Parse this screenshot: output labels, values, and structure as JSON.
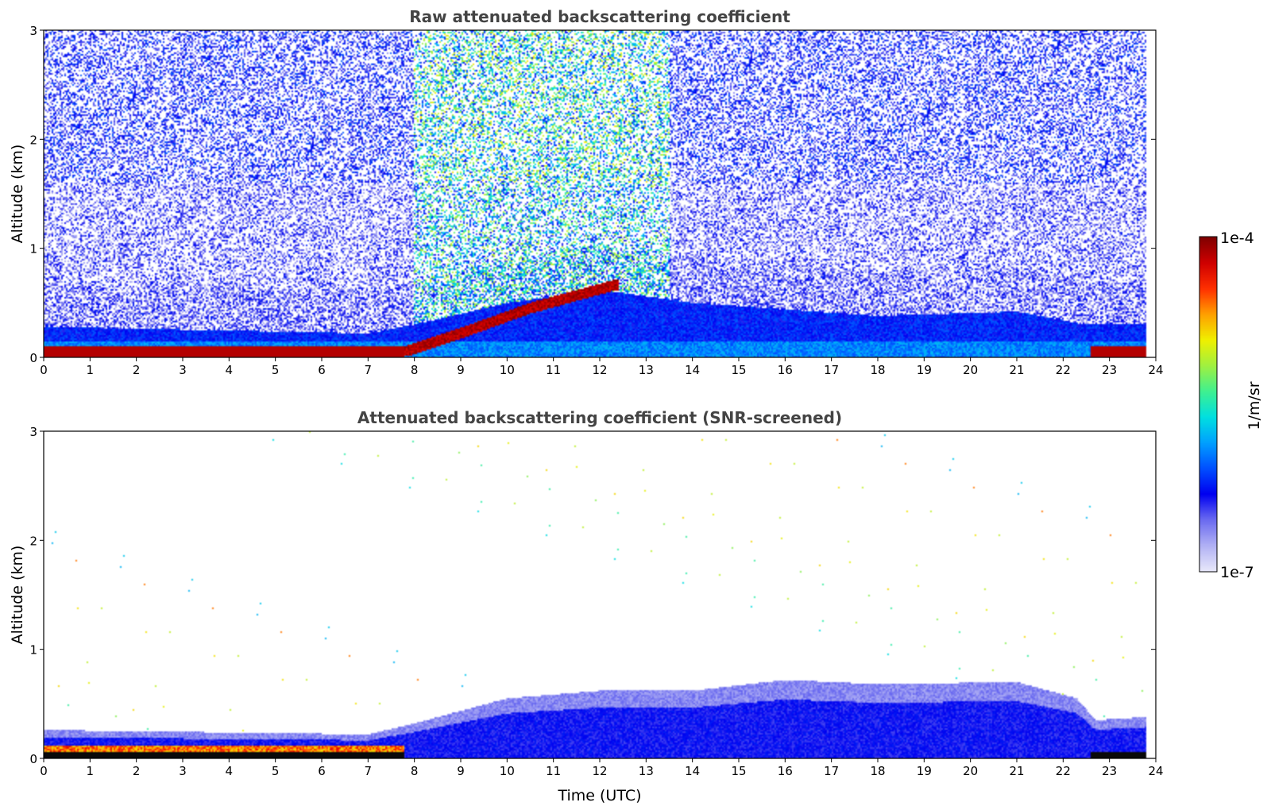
{
  "chart_data": [
    {
      "type": "heatmap",
      "title": "Raw attenuated backscattering coefficient",
      "xlabel": "",
      "ylabel": "Altitude (km)",
      "xlim": [
        0,
        24
      ],
      "ylim": [
        0,
        3
      ],
      "xticks": [
        0,
        1,
        2,
        3,
        4,
        5,
        6,
        7,
        8,
        9,
        10,
        11,
        12,
        13,
        14,
        15,
        16,
        17,
        18,
        19,
        20,
        21,
        22,
        23,
        24
      ],
      "yticks": [
        0,
        1,
        2,
        3
      ],
      "features": {
        "data_end_hour": 23.8,
        "surface_layer_top_km": 0.1,
        "aerosol_layer": [
          [
            0,
            0.28
          ],
          [
            7,
            0.22
          ],
          [
            8,
            0.3
          ],
          [
            10,
            0.5
          ],
          [
            12,
            0.62
          ],
          [
            14,
            0.5
          ],
          [
            18,
            0.38
          ],
          [
            21,
            0.42
          ],
          [
            22.5,
            0.3
          ],
          [
            23.8,
            0.3
          ]
        ],
        "rising_strong_layer": [
          [
            7.8,
            0.05
          ],
          [
            9,
            0.22
          ],
          [
            10.5,
            0.45
          ],
          [
            12.3,
            0.66
          ]
        ],
        "late_surface_layer_start_hour": 22.6
      }
    },
    {
      "type": "heatmap",
      "title": "Attenuated backscattering coefficient (SNR-screened)",
      "xlabel": "Time (UTC)",
      "ylabel": "Altitude (km)",
      "xlim": [
        0,
        24
      ],
      "ylim": [
        0,
        3
      ],
      "xticks": [
        0,
        1,
        2,
        3,
        4,
        5,
        6,
        7,
        8,
        9,
        10,
        11,
        12,
        13,
        14,
        15,
        16,
        17,
        18,
        19,
        20,
        21,
        22,
        23,
        24
      ],
      "yticks": [
        0,
        1,
        2,
        3
      ],
      "features": {
        "data_end_hour": 23.8,
        "screened_layer_top": [
          [
            0,
            0.26
          ],
          [
            7,
            0.22
          ],
          [
            8,
            0.32
          ],
          [
            10,
            0.55
          ],
          [
            12,
            0.62
          ],
          [
            14,
            0.62
          ],
          [
            16,
            0.72
          ],
          [
            18,
            0.68
          ],
          [
            21,
            0.7
          ],
          [
            22.3,
            0.55
          ],
          [
            22.7,
            0.35
          ],
          [
            23.8,
            0.38
          ]
        ]
      }
    }
  ],
  "colorbar": {
    "label": "1/m/sr",
    "min_label": "1e-7",
    "max_label": "1e-4",
    "scale": "log",
    "colormap": [
      "#e8e8fa",
      "#b0b0f4",
      "#6a6af0",
      "#0000f0",
      "#0050ff",
      "#00a0ff",
      "#00e0e0",
      "#40f090",
      "#a0f040",
      "#f0f000",
      "#ffa000",
      "#ff3000",
      "#d00000",
      "#800000"
    ]
  }
}
